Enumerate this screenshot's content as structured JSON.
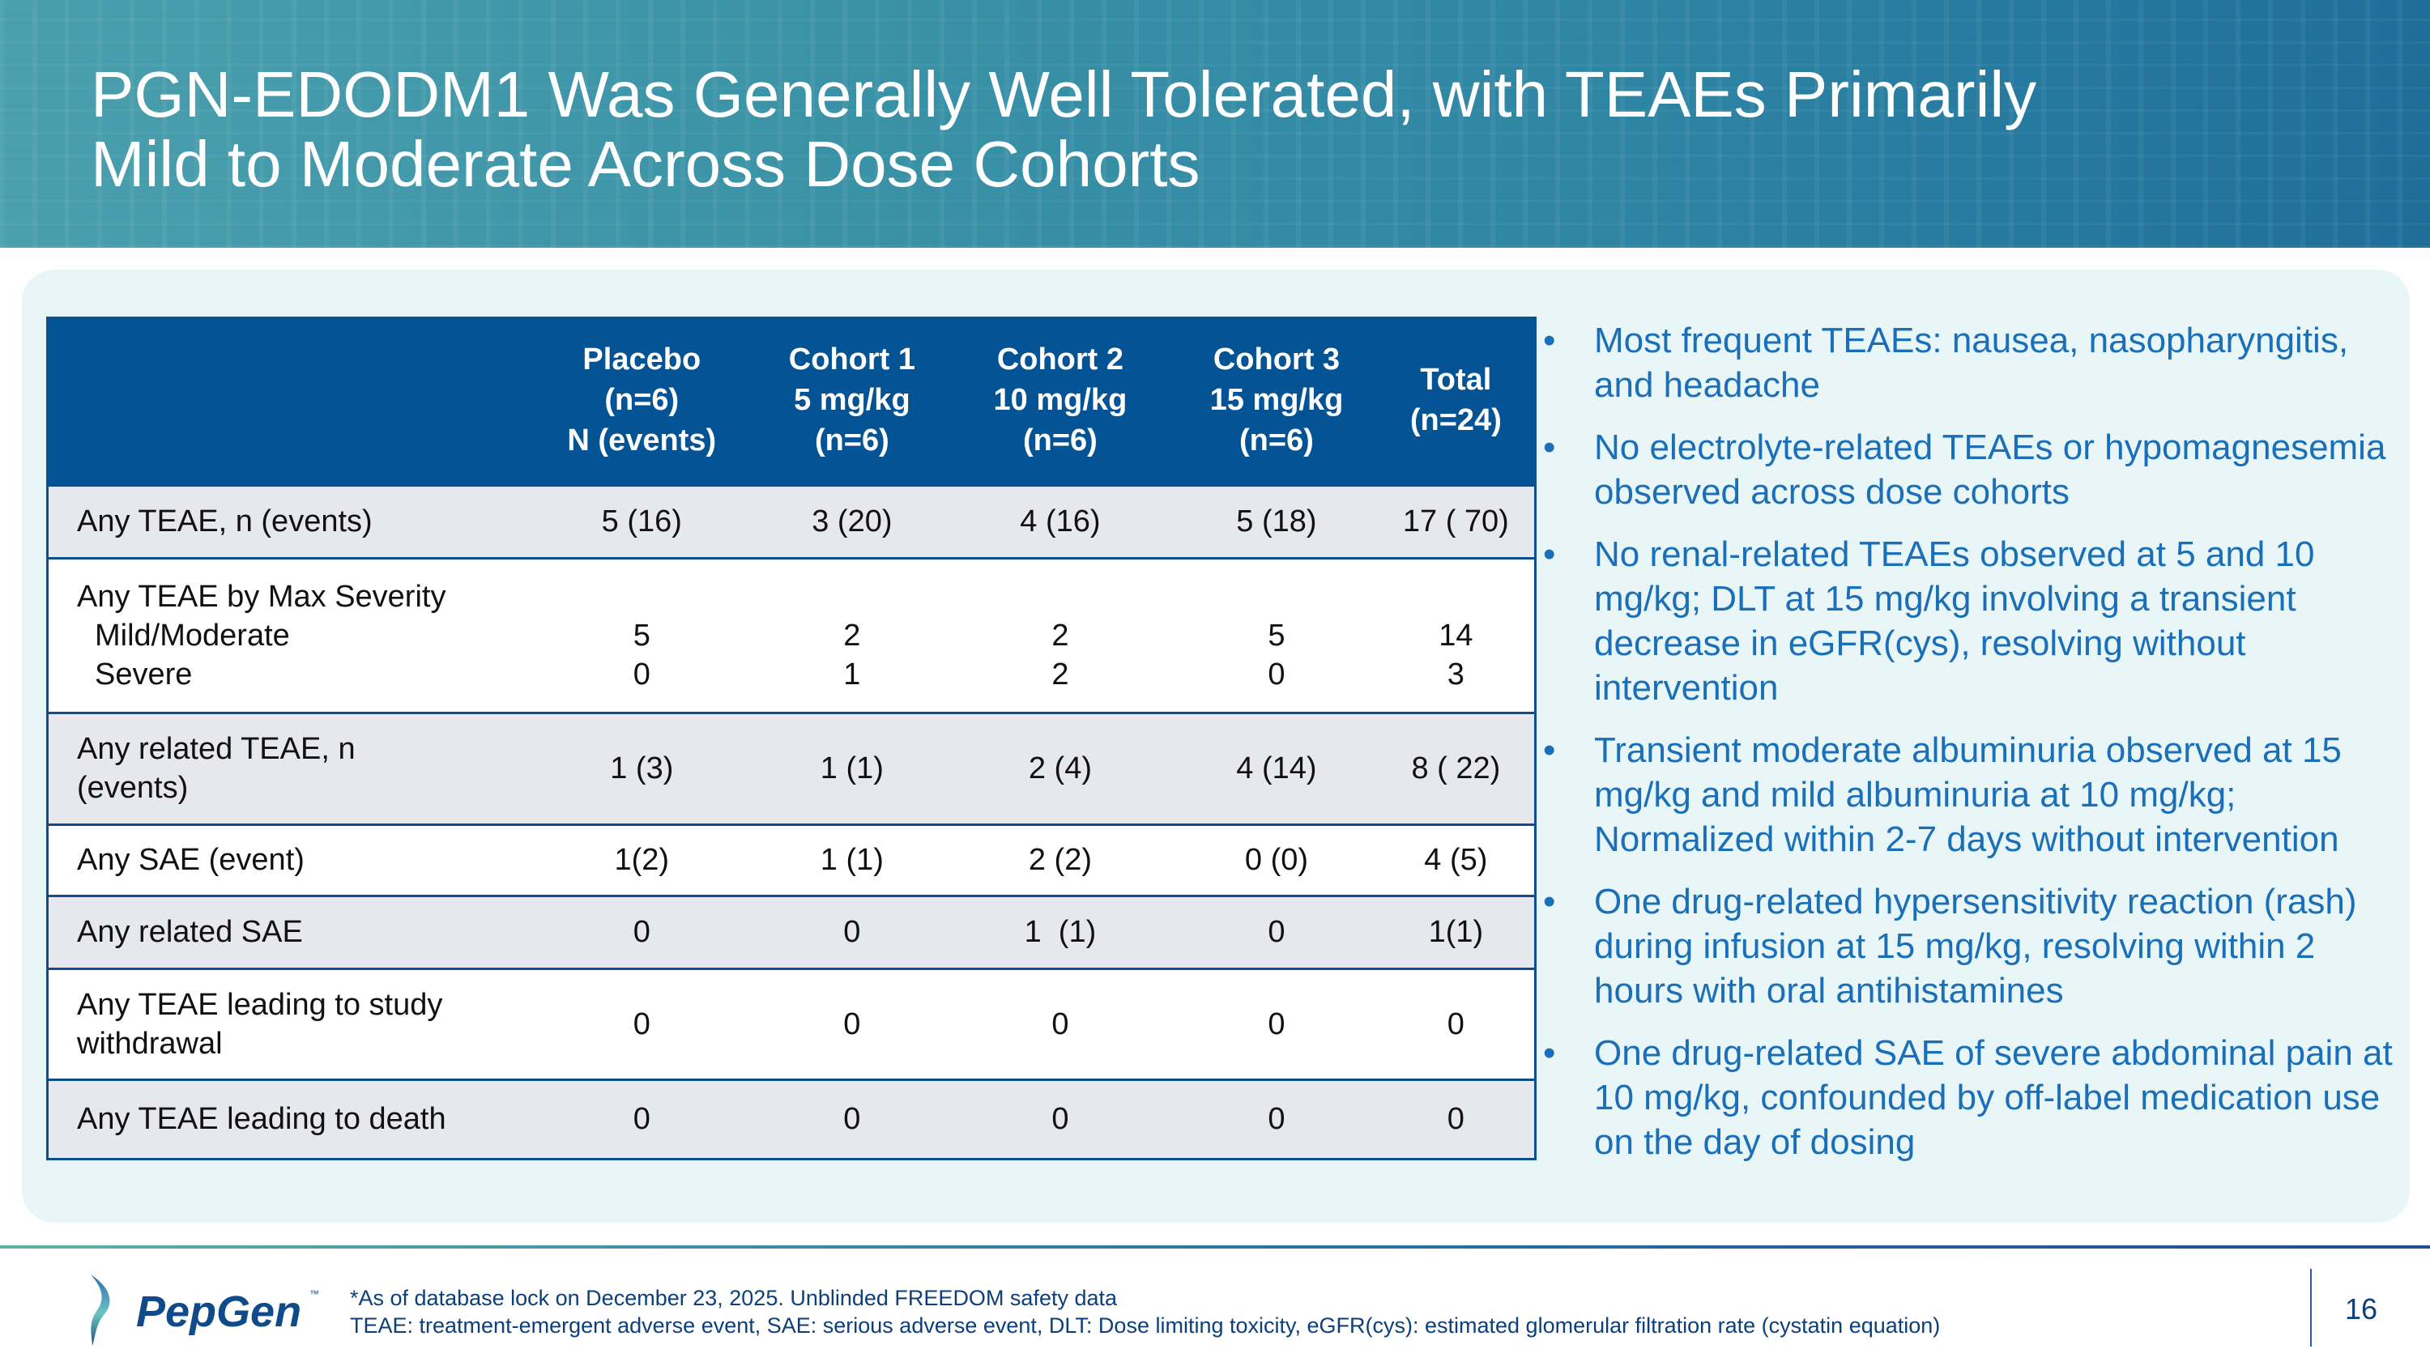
{
  "title": {
    "line1": "PGN-EDODM1 Was Generally Well Tolerated, with TEAEs Primarily",
    "line2": "Mild to Moderate Across Dose Cohorts"
  },
  "table": {
    "headers": [
      {
        "lines": [
          "",
          "",
          ""
        ]
      },
      {
        "lines": [
          "Placebo",
          "(n=6)",
          "N (events)"
        ]
      },
      {
        "lines": [
          "Cohort 1",
          "5 mg/kg",
          "(n=6)"
        ]
      },
      {
        "lines": [
          "Cohort 2",
          "10 mg/kg",
          "(n=6)"
        ]
      },
      {
        "lines": [
          "Cohort 3",
          "15 mg/kg",
          "(n=6)"
        ]
      },
      {
        "lines": [
          "Total",
          "(n=24)",
          ""
        ]
      }
    ],
    "rows": [
      {
        "label": "Any TEAE, n (events)",
        "values": [
          "5 (16)",
          "3 (20)",
          "4 (16)",
          "5 (18)",
          "17 ( 70)"
        ]
      },
      {
        "label": "Any TEAE by Max Severity",
        "sub": [
          "Mild/Moderate",
          "Severe"
        ],
        "mild": [
          "5",
          "2",
          "2",
          "5",
          "14"
        ],
        "severe": [
          "0",
          "1",
          "2",
          "0",
          "3"
        ]
      },
      {
        "label": "Any related TEAE, n (events)",
        "values": [
          "1 (3)",
          "1 (1)",
          "2 (4)",
          "4 (14)",
          "8 ( 22)"
        ]
      },
      {
        "label": "Any SAE (event)",
        "values": [
          "1(2)",
          "1 (1)",
          "2 (2)",
          "0 (0)",
          "4 (5)"
        ]
      },
      {
        "label": "Any related SAE",
        "values": [
          "0",
          "0",
          "1  (1)",
          "0",
          "1(1)"
        ]
      },
      {
        "label": "Any TEAE leading to study withdrawal",
        "values": [
          "0",
          "0",
          "0",
          "0",
          "0"
        ]
      },
      {
        "label": "Any TEAE leading to death",
        "values": [
          "0",
          "0",
          "0",
          "0",
          "0"
        ]
      }
    ]
  },
  "bullets": [
    "Most frequent TEAEs: nausea, nasopharyngitis, and headache",
    "No electrolyte-related TEAEs or hypomagnesemia observed across dose cohorts",
    "No renal-related TEAEs observed at 5 and 10 mg/kg; DLT at 15 mg/kg involving a transient decrease in eGFR(cys), resolving without intervention",
    "Transient moderate albuminuria observed at 15 mg/kg and mild albuminuria at 10 mg/kg; Normalized within 2-7 days without intervention",
    "One drug-related hypersensitivity reaction (rash) during infusion at 15 mg/kg, resolving within 2 hours with oral antihistamines",
    "One drug-related SAE of severe abdominal pain at 10 mg/kg, confounded by off-label medication use on the day of dosing"
  ],
  "bullet_char": "•",
  "footer": {
    "logo_text": "PepGen",
    "logo_tm": "™",
    "note1": "*As of database lock on December 23, 2025. Unblinded FREEDOM safety data",
    "note2": "TEAE: treatment-emergent adverse event, SAE: serious adverse event, DLT: Dose limiting toxicity, eGFR(cys): estimated glomerular filtration rate (cystatin equation)",
    "page_number": "16"
  },
  "colors": {
    "header_blue": "#045394",
    "bullet_text": "#1a6fb8",
    "panel": "#e8f6f8"
  }
}
